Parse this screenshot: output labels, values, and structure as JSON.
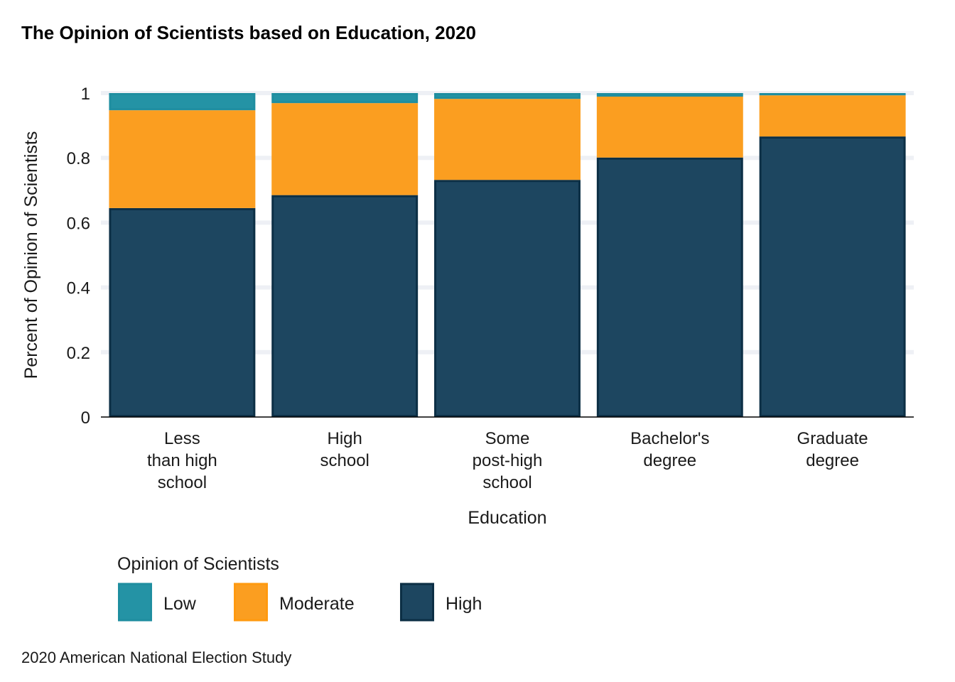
{
  "chart_data": {
    "type": "bar",
    "stacked": true,
    "title": "The Opinion of Scientists based on Education, 2020",
    "xlabel": "Education",
    "ylabel": "Percent of Opinion of Scientists",
    "caption": "2020 American National Election Study",
    "categories": [
      [
        "Less",
        "than high",
        "school"
      ],
      [
        "High",
        "school"
      ],
      [
        "Some",
        "post-high",
        "school"
      ],
      [
        "Bachelor's",
        "degree"
      ],
      [
        "Graduate",
        "degree"
      ]
    ],
    "series": [
      {
        "name": "High",
        "values": [
          0.645,
          0.685,
          0.732,
          0.801,
          0.866
        ],
        "color": "#1d4660"
      },
      {
        "name": "Moderate",
        "values": [
          0.302,
          0.284,
          0.25,
          0.188,
          0.127
        ],
        "color": "#fb9e20"
      },
      {
        "name": "Low",
        "values": [
          0.053,
          0.031,
          0.018,
          0.011,
          0.007
        ],
        "color": "#2493a5"
      }
    ],
    "ylim": [
      0,
      1
    ],
    "yticks": [
      {
        "value": 0,
        "label": "0"
      },
      {
        "value": 0.2,
        "label": "0.2"
      },
      {
        "value": 0.4,
        "label": "0.4"
      },
      {
        "value": 0.6,
        "label": "0.6"
      },
      {
        "value": 0.8,
        "label": "0.8"
      },
      {
        "value": 1,
        "label": "1"
      }
    ],
    "grid": true,
    "legend": {
      "title": "Opinion of Scientists",
      "position": "bottom",
      "order": [
        "Low",
        "Moderate",
        "High"
      ]
    }
  }
}
